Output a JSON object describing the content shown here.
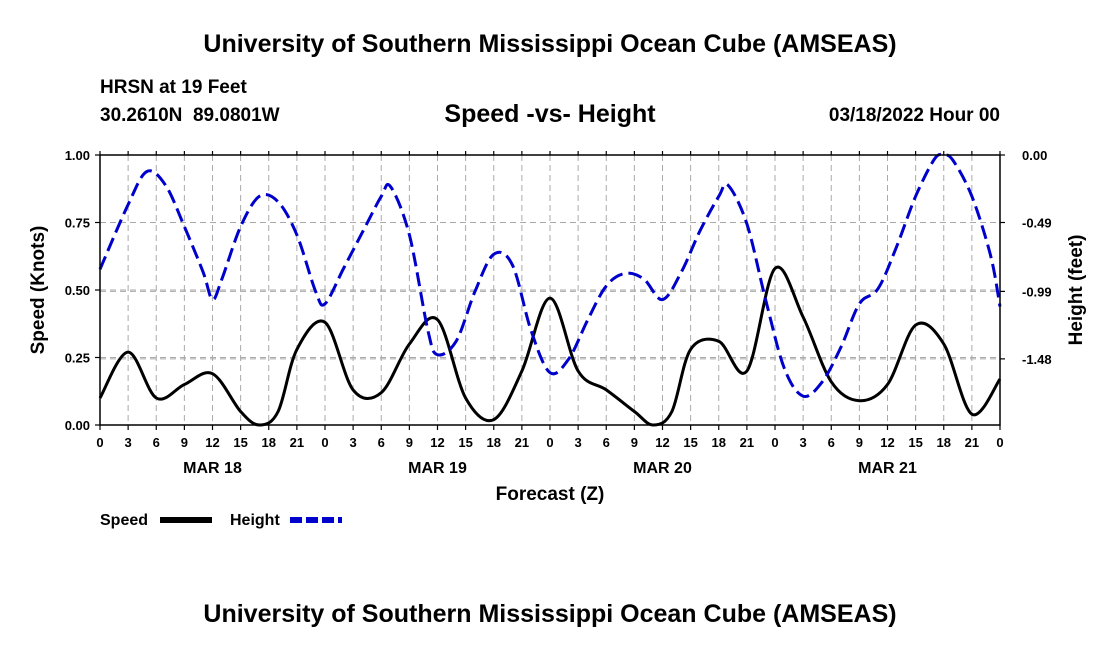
{
  "page": {
    "top_title": "University of Southern Mississippi Ocean Cube (AMSEAS)",
    "bottom_title": "University of Southern Mississippi Ocean Cube (AMSEAS)",
    "station": "HRSN at 19 Feet",
    "coords": "30.2610N  89.0801W",
    "datetime": "03/18/2022 Hour 00"
  },
  "colors": {
    "speed": "#000000",
    "height": "#0000cc",
    "grid": "#aaaaaa"
  },
  "chart_data": {
    "type": "line",
    "title": "Speed -vs- Height",
    "xlabel": "Forecast (Z)",
    "ylabel": "Speed (Knots)",
    "y2label": "Height (feet)",
    "x_hours_range": [
      0,
      96
    ],
    "ylim": [
      0,
      1.0
    ],
    "y2lim": [
      -1.96,
      0.0
    ],
    "yticks": [
      "0.00",
      "0.25",
      "0.50",
      "0.75",
      "1.00"
    ],
    "yticks_values": [
      0,
      0.25,
      0.5,
      0.75,
      1.0
    ],
    "y2ticks": [
      "0.00",
      "-0.49",
      "-0.99",
      "-1.48"
    ],
    "y2ticks_values": [
      0.0,
      -0.49,
      -0.99,
      -1.48
    ],
    "xtick_hours": [
      0,
      3,
      6,
      9,
      12,
      15,
      18,
      21,
      24,
      27,
      30,
      33,
      36,
      39,
      42,
      45,
      48,
      51,
      54,
      57,
      60,
      63,
      66,
      69,
      72,
      75,
      78,
      81,
      84,
      87,
      90,
      93,
      96
    ],
    "xtick_labels": [
      "0",
      "3",
      "6",
      "9",
      "12",
      "15",
      "18",
      "21",
      "0",
      "3",
      "6",
      "9",
      "12",
      "15",
      "18",
      "21",
      "0",
      "3",
      "6",
      "9",
      "12",
      "15",
      "18",
      "21",
      "0",
      "3",
      "6",
      "9",
      "12",
      "15",
      "18",
      "21",
      "0"
    ],
    "day_labels": [
      {
        "label": "MAR 18",
        "hour": 12
      },
      {
        "label": "MAR 19",
        "hour": 36
      },
      {
        "label": "MAR 20",
        "hour": 60
      },
      {
        "label": "MAR 21",
        "hour": 84
      }
    ],
    "legend": [
      {
        "name": "Speed",
        "style": "solid"
      },
      {
        "name": "Height",
        "style": "dashed"
      }
    ],
    "series": [
      {
        "name": "Speed",
        "axis": "left",
        "points": [
          [
            0,
            0.1
          ],
          [
            3,
            0.27
          ],
          [
            6,
            0.1
          ],
          [
            9,
            0.15
          ],
          [
            12,
            0.19
          ],
          [
            15,
            0.05
          ],
          [
            17,
            0.0
          ],
          [
            19,
            0.05
          ],
          [
            21,
            0.28
          ],
          [
            24,
            0.38
          ],
          [
            27,
            0.13
          ],
          [
            30,
            0.12
          ],
          [
            33,
            0.3
          ],
          [
            36,
            0.39
          ],
          [
            39,
            0.1
          ],
          [
            42,
            0.02
          ],
          [
            45,
            0.2
          ],
          [
            48,
            0.47
          ],
          [
            51,
            0.2
          ],
          [
            54,
            0.13
          ],
          [
            57,
            0.05
          ],
          [
            59,
            0.0
          ],
          [
            61,
            0.05
          ],
          [
            63,
            0.28
          ],
          [
            66,
            0.31
          ],
          [
            69,
            0.2
          ],
          [
            72,
            0.58
          ],
          [
            75,
            0.4
          ],
          [
            78,
            0.16
          ],
          [
            81,
            0.09
          ],
          [
            84,
            0.15
          ],
          [
            87,
            0.37
          ],
          [
            90,
            0.3
          ],
          [
            93,
            0.04
          ],
          [
            96,
            0.17
          ]
        ]
      },
      {
        "name": "Height",
        "axis": "right",
        "points": [
          [
            0,
            -0.83
          ],
          [
            3,
            -0.36
          ],
          [
            5,
            -0.12
          ],
          [
            7,
            -0.22
          ],
          [
            9,
            -0.52
          ],
          [
            11,
            -0.85
          ],
          [
            12,
            -1.05
          ],
          [
            13,
            -0.9
          ],
          [
            15,
            -0.52
          ],
          [
            17,
            -0.3
          ],
          [
            19,
            -0.34
          ],
          [
            21,
            -0.58
          ],
          [
            23,
            -0.99
          ],
          [
            24,
            -1.08
          ],
          [
            26,
            -0.82
          ],
          [
            28,
            -0.56
          ],
          [
            30,
            -0.3
          ],
          [
            31,
            -0.23
          ],
          [
            33,
            -0.58
          ],
          [
            35,
            -1.28
          ],
          [
            36,
            -1.45
          ],
          [
            38,
            -1.35
          ],
          [
            40,
            -0.99
          ],
          [
            42,
            -0.72
          ],
          [
            44,
            -0.8
          ],
          [
            46,
            -1.28
          ],
          [
            48,
            -1.58
          ],
          [
            50,
            -1.48
          ],
          [
            52,
            -1.2
          ],
          [
            54,
            -0.95
          ],
          [
            56,
            -0.86
          ],
          [
            58,
            -0.9
          ],
          [
            60,
            -1.05
          ],
          [
            62,
            -0.85
          ],
          [
            64,
            -0.55
          ],
          [
            66,
            -0.3
          ],
          [
            67,
            -0.22
          ],
          [
            69,
            -0.5
          ],
          [
            71,
            -1.05
          ],
          [
            73,
            -1.55
          ],
          [
            75,
            -1.75
          ],
          [
            77,
            -1.65
          ],
          [
            79,
            -1.4
          ],
          [
            81,
            -1.08
          ],
          [
            83,
            -0.97
          ],
          [
            85,
            -0.66
          ],
          [
            87,
            -0.3
          ],
          [
            89,
            -0.03
          ],
          [
            90,
            0.0
          ],
          [
            91,
            -0.04
          ],
          [
            93,
            -0.3
          ],
          [
            95,
            -0.73
          ],
          [
            96,
            -1.1
          ]
        ]
      }
    ]
  }
}
